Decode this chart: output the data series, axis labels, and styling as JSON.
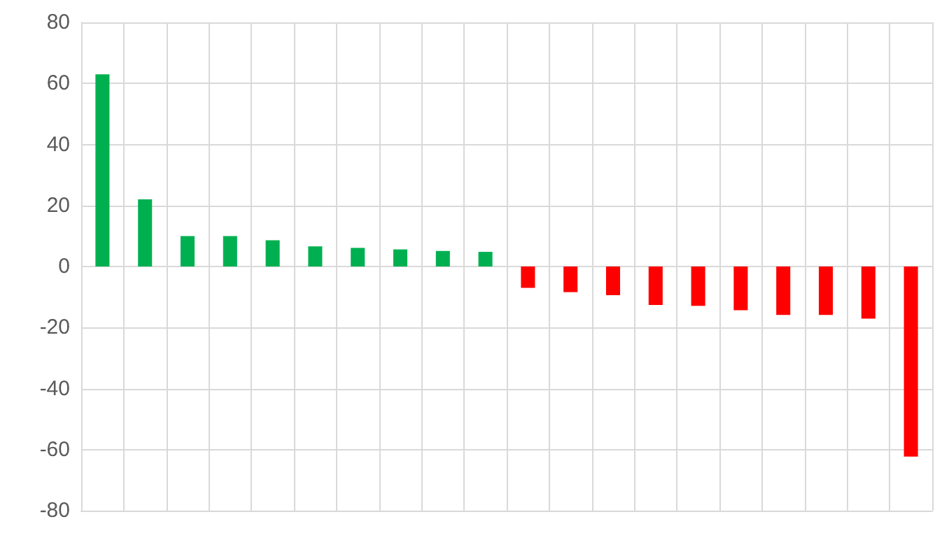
{
  "chart_data": {
    "type": "bar",
    "categories": [
      null,
      null,
      null,
      null,
      null,
      null,
      null,
      null,
      null,
      null,
      null,
      null,
      null,
      null,
      null,
      null,
      null,
      null,
      null,
      null
    ],
    "values": [
      63,
      22,
      10,
      10,
      8.6,
      6.6,
      6.1,
      5.6,
      5.1,
      4.8,
      -7,
      -8.4,
      -9.4,
      -12.6,
      -12.9,
      -14.3,
      -15.9,
      -15.9,
      -17.1,
      -62.3
    ],
    "colors": [
      "#00b050",
      "#00b050",
      "#00b050",
      "#00b050",
      "#00b050",
      "#00b050",
      "#00b050",
      "#00b050",
      "#00b050",
      "#00b050",
      "#ff0000",
      "#ff0000",
      "#ff0000",
      "#ff0000",
      "#ff0000",
      "#ff0000",
      "#ff0000",
      "#ff0000",
      "#ff0000",
      "#ff0000"
    ],
    "ylim": [
      -80,
      80
    ],
    "yticks": [
      -80,
      -60,
      -40,
      -20,
      0,
      20,
      40,
      60,
      80
    ],
    "grid": true,
    "tick_labels": "y"
  }
}
